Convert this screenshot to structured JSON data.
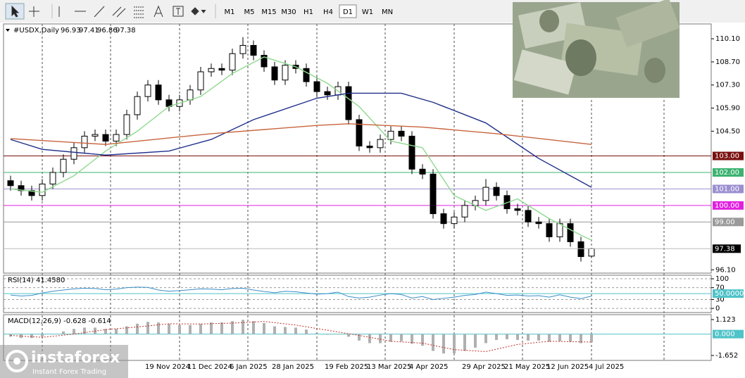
{
  "toolbar": {
    "timeframes": [
      "M1",
      "M5",
      "M15",
      "M30",
      "H1",
      "H4",
      "D1",
      "W1",
      "MN"
    ],
    "active": "D1"
  },
  "logo": {
    "name": "instaforex",
    "tagline": "Instant Forex Trading"
  },
  "chart_data": [
    {
      "type": "candlestick",
      "title": "#USDX,Daily",
      "categories": [
        null,
        null,
        null,
        null,
        null,
        null,
        null,
        null,
        null,
        null,
        null,
        null,
        null,
        "19 Nov 2024",
        null,
        null,
        null,
        "11 Dec 2024",
        null,
        null,
        null,
        "6 Jan 2025",
        null,
        null,
        null,
        "28 Jan 2025",
        null,
        null,
        null,
        null,
        "19 Feb 2025",
        null,
        null,
        null,
        "13 Mar 2025",
        null,
        null,
        null,
        "4 Apr 2025",
        null,
        null,
        null,
        null,
        "29 Apr 2025",
        null,
        null,
        null,
        "21 May 2025",
        null,
        null,
        null,
        "12 Jun 2025",
        null,
        null,
        null,
        "4 Jul 2025"
      ],
      "open": [
        101.5,
        101.2,
        100.9,
        100.6,
        101.3,
        102.0,
        102.8,
        103.5,
        104.2,
        104.3,
        103.9,
        104.3,
        105.5,
        106.6,
        107.3,
        106.4,
        106.0,
        106.4,
        107.0,
        108.1,
        108.3,
        108.2,
        109.2,
        109.7,
        109.1,
        108.4,
        107.6,
        108.5,
        108.3,
        107.5,
        106.9,
        106.7,
        107.2,
        105.2,
        103.6,
        103.5,
        104.0,
        104.5,
        104.2,
        102.2,
        101.9,
        99.5,
        98.9,
        99.3,
        100.0,
        100.3,
        101.1,
        100.6,
        99.8,
        99.7,
        99.0,
        98.9,
        98.1,
        98.9,
        97.8,
        96.93
      ],
      "high": [
        101.8,
        101.5,
        101.2,
        101.6,
        102.3,
        103.1,
        103.8,
        104.5,
        104.6,
        104.6,
        104.6,
        105.8,
        106.9,
        107.6,
        107.6,
        106.7,
        106.7,
        107.3,
        108.4,
        108.6,
        108.6,
        109.5,
        110.2,
        110.0,
        109.4,
        108.7,
        108.8,
        108.8,
        108.6,
        107.8,
        107.2,
        107.5,
        107.5,
        105.5,
        103.9,
        104.3,
        104.8,
        104.8,
        104.5,
        102.5,
        102.2,
        99.8,
        99.6,
        100.3,
        100.6,
        101.6,
        101.4,
        100.9,
        100.1,
        100.0,
        99.3,
        99.2,
        99.2,
        99.2,
        98.1,
        97.41
      ],
      "low": [
        100.9,
        100.6,
        100.3,
        100.3,
        101.0,
        101.7,
        102.5,
        103.2,
        103.9,
        103.6,
        103.6,
        104.0,
        105.2,
        106.3,
        106.1,
        105.7,
        105.7,
        106.1,
        106.7,
        107.8,
        107.9,
        107.9,
        108.9,
        108.8,
        108.1,
        107.3,
        107.3,
        108.0,
        107.2,
        106.6,
        106.4,
        106.4,
        104.9,
        103.3,
        103.2,
        103.2,
        103.7,
        103.9,
        101.9,
        101.6,
        99.2,
        98.6,
        98.6,
        99.0,
        99.7,
        100.0,
        100.3,
        99.5,
        99.4,
        98.7,
        98.6,
        97.8,
        97.8,
        97.5,
        96.6,
        96.86
      ],
      "close": [
        101.2,
        100.9,
        100.6,
        101.3,
        102.0,
        102.8,
        103.5,
        104.2,
        104.3,
        103.9,
        104.3,
        105.5,
        106.6,
        107.3,
        106.4,
        106.0,
        106.4,
        107.0,
        108.1,
        108.3,
        108.2,
        109.2,
        109.7,
        109.1,
        108.4,
        107.6,
        108.5,
        108.3,
        107.5,
        106.9,
        106.7,
        107.2,
        105.2,
        103.6,
        103.5,
        104.0,
        104.5,
        104.2,
        102.2,
        101.9,
        99.5,
        98.9,
        99.3,
        100.0,
        100.3,
        101.1,
        100.6,
        99.8,
        99.7,
        99.0,
        98.9,
        98.1,
        98.9,
        97.8,
        96.9,
        97.38
      ],
      "lines": [
        {
          "color": "#8fd98f",
          "x": [
            0,
            3,
            6,
            9,
            12,
            15,
            18,
            21,
            24,
            27,
            30,
            33,
            36,
            39,
            42,
            45,
            48,
            51,
            54,
            55
          ],
          "values": [
            101.0,
            100.8,
            101.8,
            103.3,
            104.5,
            106.0,
            106.6,
            108.0,
            109.0,
            108.4,
            107.4,
            106.0,
            103.9,
            103.5,
            100.6,
            99.7,
            100.4,
            99.2,
            98.2,
            97.9
          ]
        },
        {
          "color": "#1f2f8a",
          "x": [
            0,
            3,
            9,
            15,
            19,
            23,
            29,
            32,
            37,
            40,
            45,
            50,
            55
          ],
          "values": [
            104.0,
            103.4,
            103.05,
            103.3,
            104.0,
            105.2,
            106.5,
            106.8,
            106.8,
            106.25,
            105.0,
            102.85,
            101.1
          ]
        },
        {
          "color": "#c8643c",
          "x": [
            0,
            9,
            19,
            29,
            32,
            39,
            46,
            55
          ],
          "values": [
            104.05,
            103.7,
            104.35,
            104.85,
            104.95,
            104.75,
            104.35,
            103.7
          ]
        }
      ],
      "levels": [
        {
          "value": 103,
          "label": "103.00",
          "color": "#7a1010"
        },
        {
          "value": 102,
          "label": "102.00",
          "color": "#3cb371"
        },
        {
          "value": 101,
          "label": "101.00",
          "color": "#9b8fd0"
        },
        {
          "value": 100,
          "label": "100.00",
          "color": "#e020e0"
        },
        {
          "value": 99,
          "label": "99.00",
          "color": "#9a9a9a"
        }
      ],
      "ylim": [
        95.9,
        111.0
      ],
      "yticks": [
        {
          "value": 110.1,
          "label": "110.10"
        },
        {
          "value": 108.7,
          "label": "108.70"
        },
        {
          "value": 107.3,
          "label": "107.30"
        },
        {
          "value": 105.9,
          "label": "105.90"
        },
        {
          "value": 104.5,
          "label": "104.50"
        },
        {
          "value": 96.1,
          "label": "96.10"
        }
      ]
    },
    {
      "type": "line",
      "title": "RSI(14) 41.4580",
      "color": "#3a8fc8",
      "values": [
        45,
        42,
        44,
        52,
        58,
        62,
        66,
        68,
        67,
        63,
        65,
        70,
        72,
        71,
        62,
        58,
        60,
        63,
        66,
        65,
        63,
        67,
        68,
        62,
        57,
        53,
        58,
        56,
        52,
        48,
        50,
        55,
        40,
        35,
        38,
        45,
        50,
        47,
        35,
        40,
        30,
        34,
        38,
        44,
        47,
        55,
        50,
        44,
        45,
        42,
        43,
        38,
        46,
        38,
        33,
        41.458
      ],
      "levels": [
        {
          "value": 50,
          "label": "50.0000",
          "color": "#4fc3c8"
        }
      ],
      "ylim": [
        -14,
        112
      ],
      "yticks": [
        0,
        30,
        70,
        100
      ]
    },
    {
      "type": "bar",
      "title": "MACD(12,26,9) -0.628 -0.614",
      "color": "#b0b0b0",
      "values": [
        -0.2,
        -0.3,
        -0.3,
        -0.2,
        0.0,
        0.2,
        0.4,
        0.5,
        0.5,
        0.4,
        0.4,
        0.6,
        0.8,
        0.95,
        0.9,
        0.8,
        0.7,
        0.7,
        0.8,
        0.9,
        0.9,
        1.0,
        1.1,
        1.0,
        0.85,
        0.6,
        0.55,
        0.5,
        0.35,
        0.1,
        -0.05,
        0.0,
        -0.2,
        -0.5,
        -0.7,
        -0.7,
        -0.6,
        -0.55,
        -0.75,
        -0.9,
        -1.3,
        -1.5,
        -1.5,
        -1.3,
        -1.05,
        -0.7,
        -0.45,
        -0.4,
        -0.45,
        -0.5,
        -0.5,
        -0.6,
        -0.55,
        -0.6,
        -0.7,
        -0.628
      ],
      "signal": {
        "color": "#c0302a",
        "x": [
          0,
          3,
          6,
          9,
          12,
          15,
          18,
          21,
          24,
          27,
          30,
          33,
          36,
          39,
          42,
          45,
          48,
          51,
          54,
          55
        ],
        "values": [
          -0.1,
          -0.25,
          0.0,
          0.35,
          0.55,
          0.8,
          0.78,
          0.85,
          0.98,
          0.7,
          0.3,
          -0.1,
          -0.55,
          -0.7,
          -1.2,
          -1.35,
          -0.8,
          -0.55,
          -0.6,
          -0.614
        ]
      },
      "levels": [
        {
          "value": 0,
          "label": "0.000",
          "color": "#4fc3c8"
        }
      ],
      "ylim": [
        -2.033,
        1.504
      ],
      "yticks": [
        1.123,
        -1.652
      ]
    }
  ]
}
